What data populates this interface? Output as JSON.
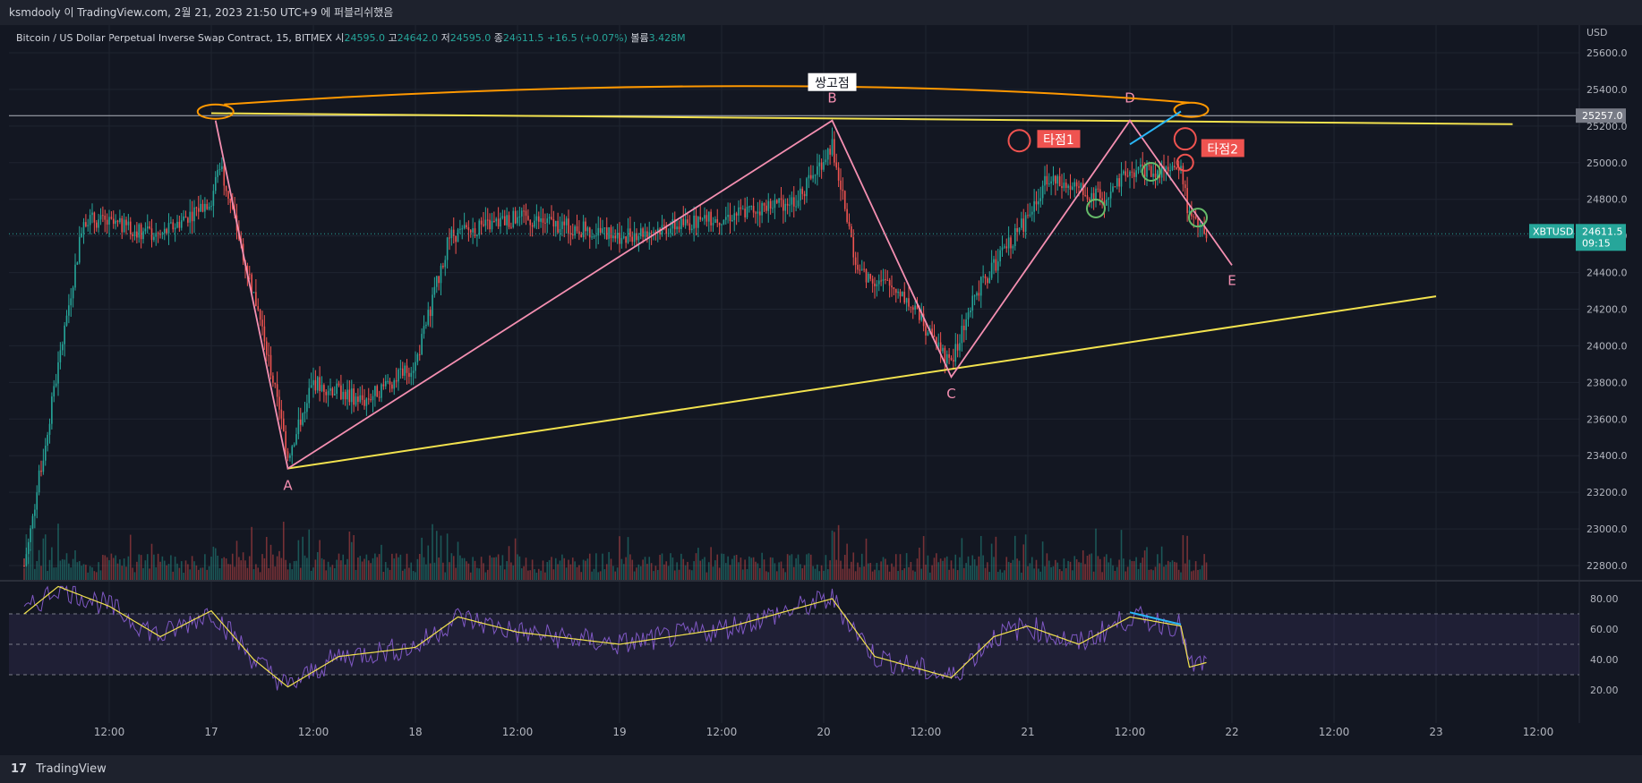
{
  "header": {
    "publish_line": "ksmdooly 이 TradingView.com, 2월 21, 2023 21:50 UTC+9 에 퍼블리쉬했음"
  },
  "legend": {
    "symbol": "Bitcoin / US Dollar Perpetual Inverse Swap Contract, 15, BITMEX",
    "open_label": "시",
    "open": "24595.0",
    "high_label": "고",
    "high": "24642.0",
    "low_label": "저",
    "low": "24595.0",
    "close_label": "종",
    "close": "24611.5",
    "change": "+16.5 (+0.07%)",
    "volume_label": "볼륨",
    "volume": "3.428M"
  },
  "price_axis": {
    "currency": "USD",
    "ticks": [
      "25600.0",
      "25400.0",
      "25200.0",
      "25000.0",
      "24800.0",
      "24600.0",
      "24400.0",
      "24200.0",
      "24000.0",
      "23800.0",
      "23600.0",
      "23400.0",
      "23200.0",
      "23000.0",
      "22800.0"
    ],
    "marker_line_label": "25257.0",
    "last_symbol": "XBTUSD",
    "last_price": "24611.5",
    "last_countdown": "09:15"
  },
  "rsi_axis": {
    "ticks": [
      "80.00",
      "60.00",
      "40.00",
      "20.00"
    ]
  },
  "time_axis": {
    "ticks": [
      "12:00",
      "17",
      "12:00",
      "18",
      "12:00",
      "19",
      "12:00",
      "20",
      "12:00",
      "21",
      "12:00",
      "22",
      "12:00",
      "23",
      "12:00"
    ]
  },
  "annotations": {
    "double_top": "쌍고점",
    "entry1": "타점1",
    "entry2": "타점2",
    "points": [
      "A",
      "B",
      "C",
      "D",
      "E"
    ]
  },
  "colors": {
    "background": "#131722",
    "up": "#26a69a",
    "down": "#ef5350",
    "wave_line": "#f48fb1",
    "trend_line": "#f2e24e",
    "double_top_line": "#ff9800",
    "divergence": "#29b6f6",
    "rsi_line": "#7e57c2",
    "rsi_ma": "#f2e24e"
  },
  "chart_data": {
    "type": "candlestick",
    "symbol": "XBTUSD",
    "timeframe": "15",
    "ylim": [
      22700,
      25700
    ],
    "key_points": [
      {
        "label": "A",
        "time": "Feb 17 ~09:00",
        "price": 23330
      },
      {
        "label": "B",
        "time": "Feb 20 ~01:00",
        "price": 25230
      },
      {
        "label": "C",
        "time": "Feb 20 ~15:00",
        "price": 23830
      },
      {
        "label": "D",
        "time": "Feb 21 ~12:00",
        "price": 25230
      },
      {
        "label": "E",
        "time": "Feb 22 ~00:00",
        "price": 24440
      }
    ],
    "resistance": {
      "from": {
        "time": "Feb 17 ~00:00",
        "price": 25270
      },
      "to": {
        "time": "Feb 23 ~09:00",
        "price": 25210
      }
    },
    "support": {
      "from": {
        "time": "Feb 17 ~09:00",
        "price": 23330
      },
      "to": {
        "time": "Feb 23 ~00:00",
        "price": 24270
      }
    },
    "close_path": [
      {
        "t": "Feb 16 ~02:00",
        "p": 22800
      },
      {
        "t": "Feb 16 ~09:00",
        "p": 24700
      },
      {
        "t": "Feb 16 ~18:00",
        "p": 24600
      },
      {
        "t": "Feb 17 ~00:00",
        "p": 24800
      },
      {
        "t": "Feb 17 ~01:00",
        "p": 25000
      },
      {
        "t": "Feb 17 ~06:00",
        "p": 24100
      },
      {
        "t": "Feb 17 ~09:00",
        "p": 23400
      },
      {
        "t": "Feb 17 ~12:00",
        "p": 23800
      },
      {
        "t": "Feb 17 ~18:00",
        "p": 23700
      },
      {
        "t": "Feb 18 ~00:00",
        "p": 23900
      },
      {
        "t": "Feb 18 ~04:00",
        "p": 24600
      },
      {
        "t": "Feb 18 ~12:00",
        "p": 24700
      },
      {
        "t": "Feb 19 ~00:00",
        "p": 24600
      },
      {
        "t": "Feb 19 ~12:00",
        "p": 24700
      },
      {
        "t": "Feb 19 ~21:00",
        "p": 24800
      },
      {
        "t": "Feb 20 ~01:00",
        "p": 25100
      },
      {
        "t": "Feb 20 ~04:00",
        "p": 24400
      },
      {
        "t": "Feb 20 ~09:00",
        "p": 24300
      },
      {
        "t": "Feb 20 ~15:00",
        "p": 23900
      },
      {
        "t": "Feb 20 ~18:00",
        "p": 24300
      },
      {
        "t": "Feb 21 ~00:00",
        "p": 24700
      },
      {
        "t": "Feb 21 ~02:00",
        "p": 24900
      },
      {
        "t": "Feb 21 ~06:00",
        "p": 24850
      },
      {
        "t": "Feb 21 ~09:00",
        "p": 24800
      },
      {
        "t": "Feb 21 ~12:00",
        "p": 24950
      },
      {
        "t": "Feb 21 ~18:00",
        "p": 24950
      },
      {
        "t": "Feb 21 ~19:00",
        "p": 24700
      },
      {
        "t": "Feb 21 ~21:00",
        "p": 24611.5
      }
    ],
    "rsi": {
      "ylim": [
        10,
        90
      ],
      "bands": [
        70,
        50,
        30
      ],
      "path": [
        {
          "t": "Feb 16 ~02:00",
          "v": 70
        },
        {
          "t": "Feb 16 ~06:00",
          "v": 88
        },
        {
          "t": "Feb 16 ~12:00",
          "v": 75
        },
        {
          "t": "Feb 16 ~18:00",
          "v": 55
        },
        {
          "t": "Feb 17 ~00:00",
          "v": 72
        },
        {
          "t": "Feb 17 ~05:00",
          "v": 40
        },
        {
          "t": "Feb 17 ~09:00",
          "v": 22
        },
        {
          "t": "Feb 17 ~15:00",
          "v": 42
        },
        {
          "t": "Feb 18 ~00:00",
          "v": 48
        },
        {
          "t": "Feb 18 ~05:00",
          "v": 68
        },
        {
          "t": "Feb 18 ~12:00",
          "v": 58
        },
        {
          "t": "Feb 19 ~00:00",
          "v": 50
        },
        {
          "t": "Feb 19 ~12:00",
          "v": 60
        },
        {
          "t": "Feb 20 ~01:00",
          "v": 80
        },
        {
          "t": "Feb 20 ~06:00",
          "v": 42
        },
        {
          "t": "Feb 20 ~15:00",
          "v": 28
        },
        {
          "t": "Feb 20 ~20:00",
          "v": 55
        },
        {
          "t": "Feb 21 ~00:00",
          "v": 62
        },
        {
          "t": "Feb 21 ~06:00",
          "v": 50
        },
        {
          "t": "Feb 21 ~12:00",
          "v": 68
        },
        {
          "t": "Feb 21 ~18:00",
          "v": 62
        },
        {
          "t": "Feb 21 ~19:00",
          "v": 35
        },
        {
          "t": "Feb 21 ~21:00",
          "v": 38
        }
      ],
      "divergence": {
        "from": {
          "t": "Feb 21 ~12:00",
          "v": 71
        },
        "to": {
          "t": "Feb 21 ~18:00",
          "v": 63
        }
      }
    },
    "grid": true
  }
}
